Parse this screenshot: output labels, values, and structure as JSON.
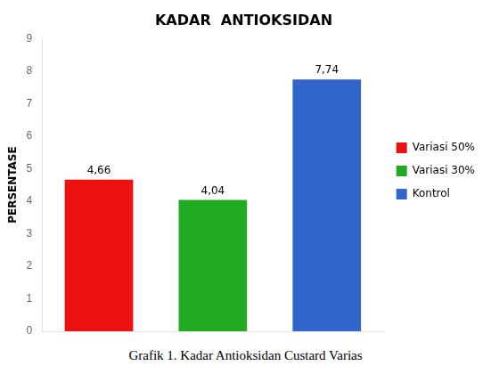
{
  "chart_data": {
    "type": "bar",
    "title": "KADAR  ANTIOKSIDAN",
    "categories": [
      "Variasi 50%",
      "Variasi 30%",
      "Kontrol"
    ],
    "values": [
      4.66,
      4.04,
      7.74
    ],
    "value_labels": [
      "4,66",
      "4,04",
      "7,74"
    ],
    "colors": [
      "#ee1111",
      "#22aa22",
      "#3366cc"
    ],
    "ylabel": "PERSENTASE",
    "ylim": [
      0,
      9
    ],
    "yticks": [
      0,
      1,
      2,
      3,
      4,
      5,
      6,
      7,
      8,
      9
    ],
    "grid": false,
    "legend": "right",
    "data_labels": true,
    "tick_labels": "y",
    "caption": "Grafik 1. Kadar Antioksidan Custard Varias"
  }
}
